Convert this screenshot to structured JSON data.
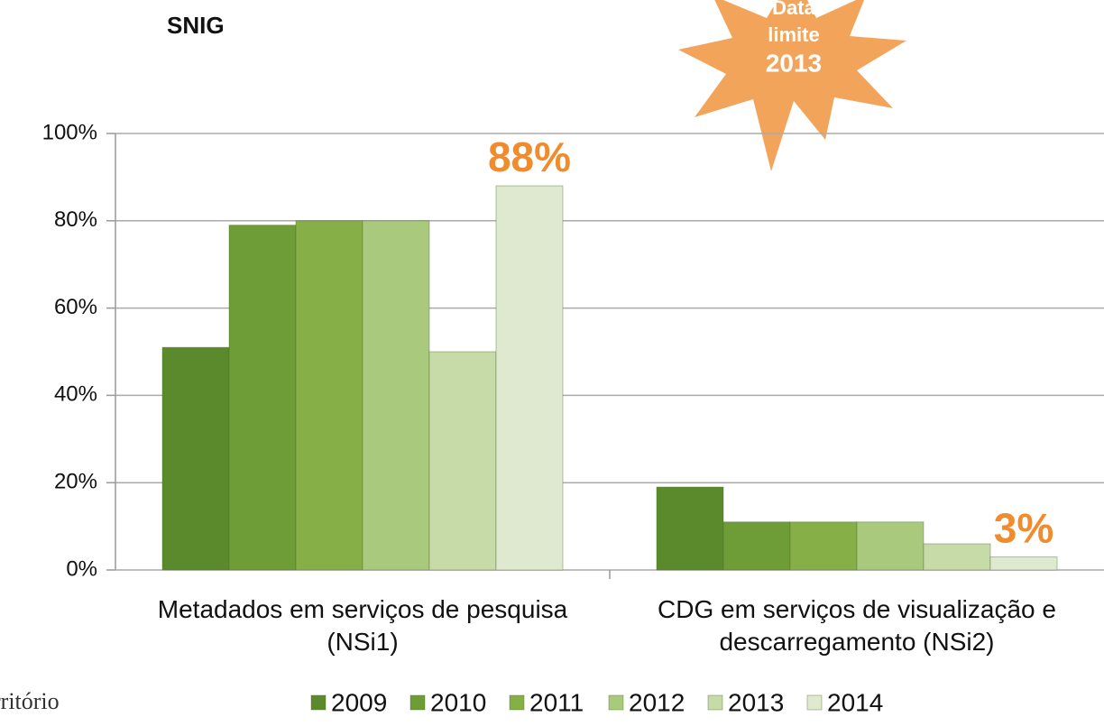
{
  "chart_data": {
    "type": "bar",
    "title": "SNIG",
    "annotation": {
      "lines": [
        "Data",
        "limite",
        "2013"
      ]
    },
    "logo": "rritório",
    "categories": [
      "Metadados em serviços de pesquisa (NSi1)",
      "CDG em serviços de visualização e descarregamento (NSi2)"
    ],
    "series": [
      {
        "name": "2009",
        "color": "#5b8a2c",
        "values": [
          51,
          19
        ]
      },
      {
        "name": "2010",
        "color": "#6e9c37",
        "values": [
          79,
          11
        ]
      },
      {
        "name": "2011",
        "color": "#86b047",
        "values": [
          80,
          11
        ]
      },
      {
        "name": "2012",
        "color": "#a9c97c",
        "values": [
          80,
          11
        ]
      },
      {
        "name": "2013",
        "color": "#c7dba8",
        "values": [
          50,
          6
        ]
      },
      {
        "name": "2014",
        "color": "#dfe9cf",
        "values": [
          88,
          3
        ],
        "value_labels": [
          "88%",
          "3%"
        ]
      }
    ],
    "ylim": [
      0,
      100
    ],
    "yticks": [
      {
        "value": 0,
        "label": "0%"
      },
      {
        "value": 20,
        "label": "20%"
      },
      {
        "value": 40,
        "label": "40%"
      },
      {
        "value": 60,
        "label": "60%"
      },
      {
        "value": 80,
        "label": "80%"
      },
      {
        "value": 100,
        "label": "100%"
      }
    ],
    "grid": true,
    "legend": "bottom"
  }
}
